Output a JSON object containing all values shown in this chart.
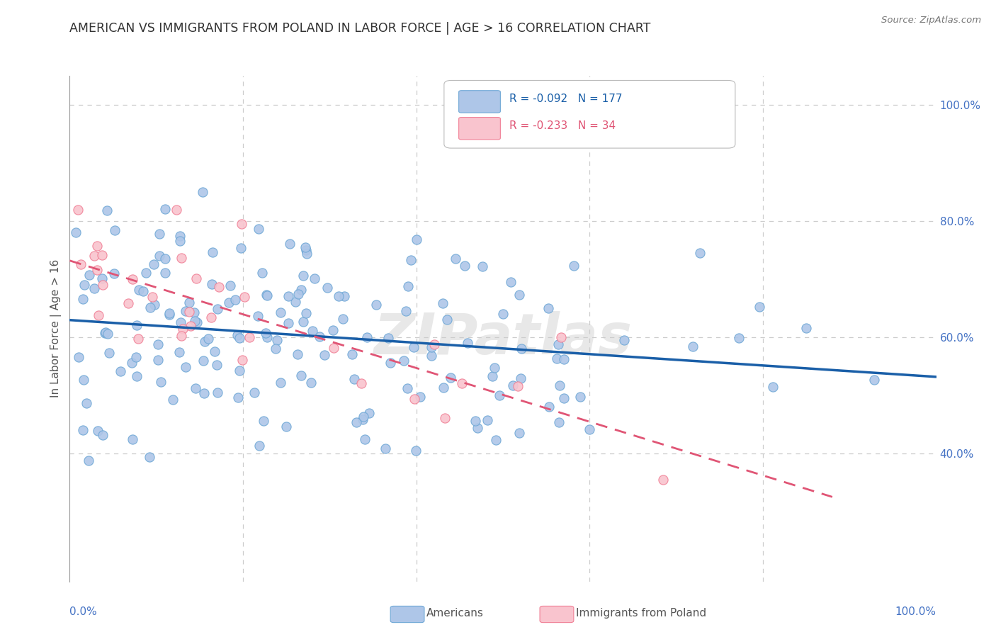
{
  "title": "AMERICAN VS IMMIGRANTS FROM POLAND IN LABOR FORCE | AGE > 16 CORRELATION CHART",
  "source": "Source: ZipAtlas.com",
  "ylabel": "In Labor Force | Age > 16",
  "xlim": [
    0.0,
    1.0
  ],
  "ylim": [
    0.18,
    1.05
  ],
  "ytick_positions": [
    0.4,
    0.6,
    0.8,
    1.0
  ],
  "ytick_labels": [
    "40.0%",
    "60.0%",
    "80.0%",
    "100.0%"
  ],
  "xtick_positions": [
    0.0,
    1.0
  ],
  "xtick_labels": [
    "0.0%",
    "100.0%"
  ],
  "watermark": "ZIPatlas",
  "legend_R_american": "-0.092",
  "legend_N_american": "177",
  "legend_R_poland": "-0.233",
  "legend_N_poland": "34",
  "american_fill": "#aec6e8",
  "american_edge": "#6fa8d6",
  "poland_fill": "#f9c4ce",
  "poland_edge": "#f08096",
  "trendline_american_color": "#1a5fa8",
  "trendline_poland_color": "#e05575",
  "background_color": "#ffffff",
  "grid_color": "#cccccc",
  "title_color": "#333333",
  "axis_label_color": "#555555",
  "tick_color": "#4472c4",
  "legend_text_american_color": "#1a5fa8",
  "legend_text_poland_color": "#e05575"
}
